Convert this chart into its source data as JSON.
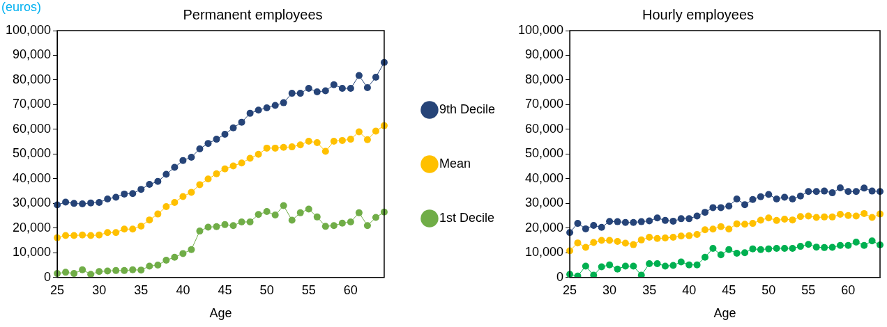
{
  "chart_data": [
    {
      "type": "line",
      "title": "Permanent employees",
      "xlabel": "Age",
      "annotations": [
        "(euros)"
      ],
      "categories": [
        "25",
        null,
        null,
        null,
        null,
        "30",
        null,
        null,
        null,
        null,
        "35",
        null,
        null,
        null,
        null,
        "40",
        null,
        null,
        null,
        null,
        "45",
        null,
        null,
        null,
        null,
        "50",
        null,
        null,
        null,
        null,
        "55",
        null,
        null,
        null,
        null,
        "60",
        null,
        null,
        null,
        null
      ],
      "series": [
        {
          "name": "9th Decile",
          "color": "#264478",
          "values": [
            29400,
            30500,
            30000,
            29800,
            30200,
            30400,
            31800,
            32500,
            33800,
            34000,
            35700,
            37700,
            38900,
            41800,
            44600,
            47400,
            48700,
            52100,
            54300,
            56000,
            58000,
            60600,
            62900,
            66500,
            67800,
            68700,
            69700,
            70800,
            74600,
            74600,
            76600,
            75200,
            75600,
            78100,
            76600,
            76600,
            81800,
            76900,
            81100,
            87100
          ]
        },
        {
          "name": "Mean",
          "color": "#ffc000",
          "values": [
            16100,
            17000,
            17000,
            17200,
            17000,
            17200,
            18200,
            18200,
            19600,
            19600,
            20800,
            23300,
            25700,
            28700,
            30400,
            32800,
            34500,
            37600,
            39900,
            42000,
            44000,
            45200,
            46400,
            48300,
            49900,
            52400,
            52400,
            52700,
            52900,
            53700,
            55200,
            54600,
            51100,
            55200,
            55500,
            56000,
            59000,
            55800,
            59300,
            61500
          ]
        },
        {
          "name": "1st Decile",
          "color": "#70ad47",
          "values": [
            1600,
            2100,
            1600,
            3100,
            1300,
            2400,
            2600,
            2800,
            2800,
            3100,
            3000,
            4600,
            5000,
            7000,
            8200,
            9700,
            11300,
            18800,
            20400,
            20600,
            21400,
            21000,
            22500,
            22500,
            25500,
            26700,
            25300,
            29100,
            23200,
            26200,
            27700,
            24500,
            20700,
            21000,
            22000,
            22500,
            26200,
            21000,
            24300,
            26500
          ]
        }
      ],
      "ylim": [
        0,
        100000
      ],
      "yticks": [
        {
          "value": 0,
          "label": "0"
        },
        {
          "value": 10000,
          "label": "10,000"
        },
        {
          "value": 20000,
          "label": "20,000"
        },
        {
          "value": 30000,
          "label": "30,000"
        },
        {
          "value": 40000,
          "label": "40,000"
        },
        {
          "value": 50000,
          "label": "50,000"
        },
        {
          "value": 60000,
          "label": "60,000"
        },
        {
          "value": 70000,
          "label": "70,000"
        },
        {
          "value": 80000,
          "label": "80,000"
        },
        {
          "value": 90000,
          "label": "90,000"
        },
        {
          "value": 100000,
          "label": "100,000"
        }
      ],
      "marker": "circle",
      "grid": false,
      "legend": "right"
    },
    {
      "type": "line",
      "title": "Hourly employees",
      "xlabel": "Age",
      "categories": [
        "25",
        null,
        null,
        null,
        null,
        "30",
        null,
        null,
        null,
        null,
        "35",
        null,
        null,
        null,
        null,
        "40",
        null,
        null,
        null,
        null,
        "45",
        null,
        null,
        null,
        null,
        "50",
        null,
        null,
        null,
        null,
        "55",
        null,
        null,
        null,
        null,
        "60",
        null,
        null,
        null,
        null
      ],
      "series": [
        {
          "color": "#264478",
          "values": [
            18200,
            21900,
            19700,
            21100,
            20300,
            22700,
            22600,
            22300,
            22300,
            22600,
            22900,
            24100,
            23100,
            22800,
            23800,
            23800,
            24900,
            26400,
            28300,
            28300,
            28900,
            31800,
            29500,
            31600,
            32700,
            33600,
            31800,
            32500,
            31800,
            33000,
            34800,
            34800,
            35000,
            34300,
            36300,
            34800,
            34800,
            36200,
            35000,
            34800
          ]
        },
        {
          "color": "#ffc000",
          "values": [
            10800,
            14000,
            12200,
            14200,
            15000,
            15000,
            14600,
            13900,
            13300,
            15200,
            16300,
            15800,
            16000,
            16300,
            16800,
            16900,
            17400,
            19300,
            19600,
            20600,
            19600,
            21700,
            21600,
            21900,
            23200,
            24100,
            23100,
            23600,
            23300,
            24700,
            24900,
            24300,
            24500,
            24500,
            25600,
            25100,
            24900,
            25900,
            24300,
            25700
          ]
        },
        {
          "color": "#00b050",
          "values": [
            1300,
            600,
            4600,
            900,
            4300,
            5100,
            3400,
            4600,
            4600,
            900,
            5600,
            5600,
            4600,
            4900,
            6300,
            5100,
            5100,
            8200,
            11800,
            9200,
            11300,
            9800,
            10000,
            11600,
            11300,
            11600,
            11800,
            11800,
            11800,
            12600,
            13400,
            12300,
            12100,
            12200,
            13000,
            13000,
            14300,
            13000,
            14800,
            13200
          ]
        }
      ],
      "ylim": [
        0,
        100000
      ],
      "yticks": [
        {
          "value": 0,
          "label": "0"
        },
        {
          "value": 10000,
          "label": "10,000"
        },
        {
          "value": 20000,
          "label": "20,000"
        },
        {
          "value": 30000,
          "label": "30,000"
        },
        {
          "value": 40000,
          "label": "40,000"
        },
        {
          "value": 50000,
          "label": "50,000"
        },
        {
          "value": 60000,
          "label": "60,000"
        },
        {
          "value": 70000,
          "label": "70,000"
        },
        {
          "value": 80000,
          "label": "80,000"
        },
        {
          "value": 90000,
          "label": "90,000"
        },
        {
          "value": 100000,
          "label": "100,000"
        }
      ],
      "marker": "circle",
      "grid": false,
      "legend": false
    }
  ]
}
